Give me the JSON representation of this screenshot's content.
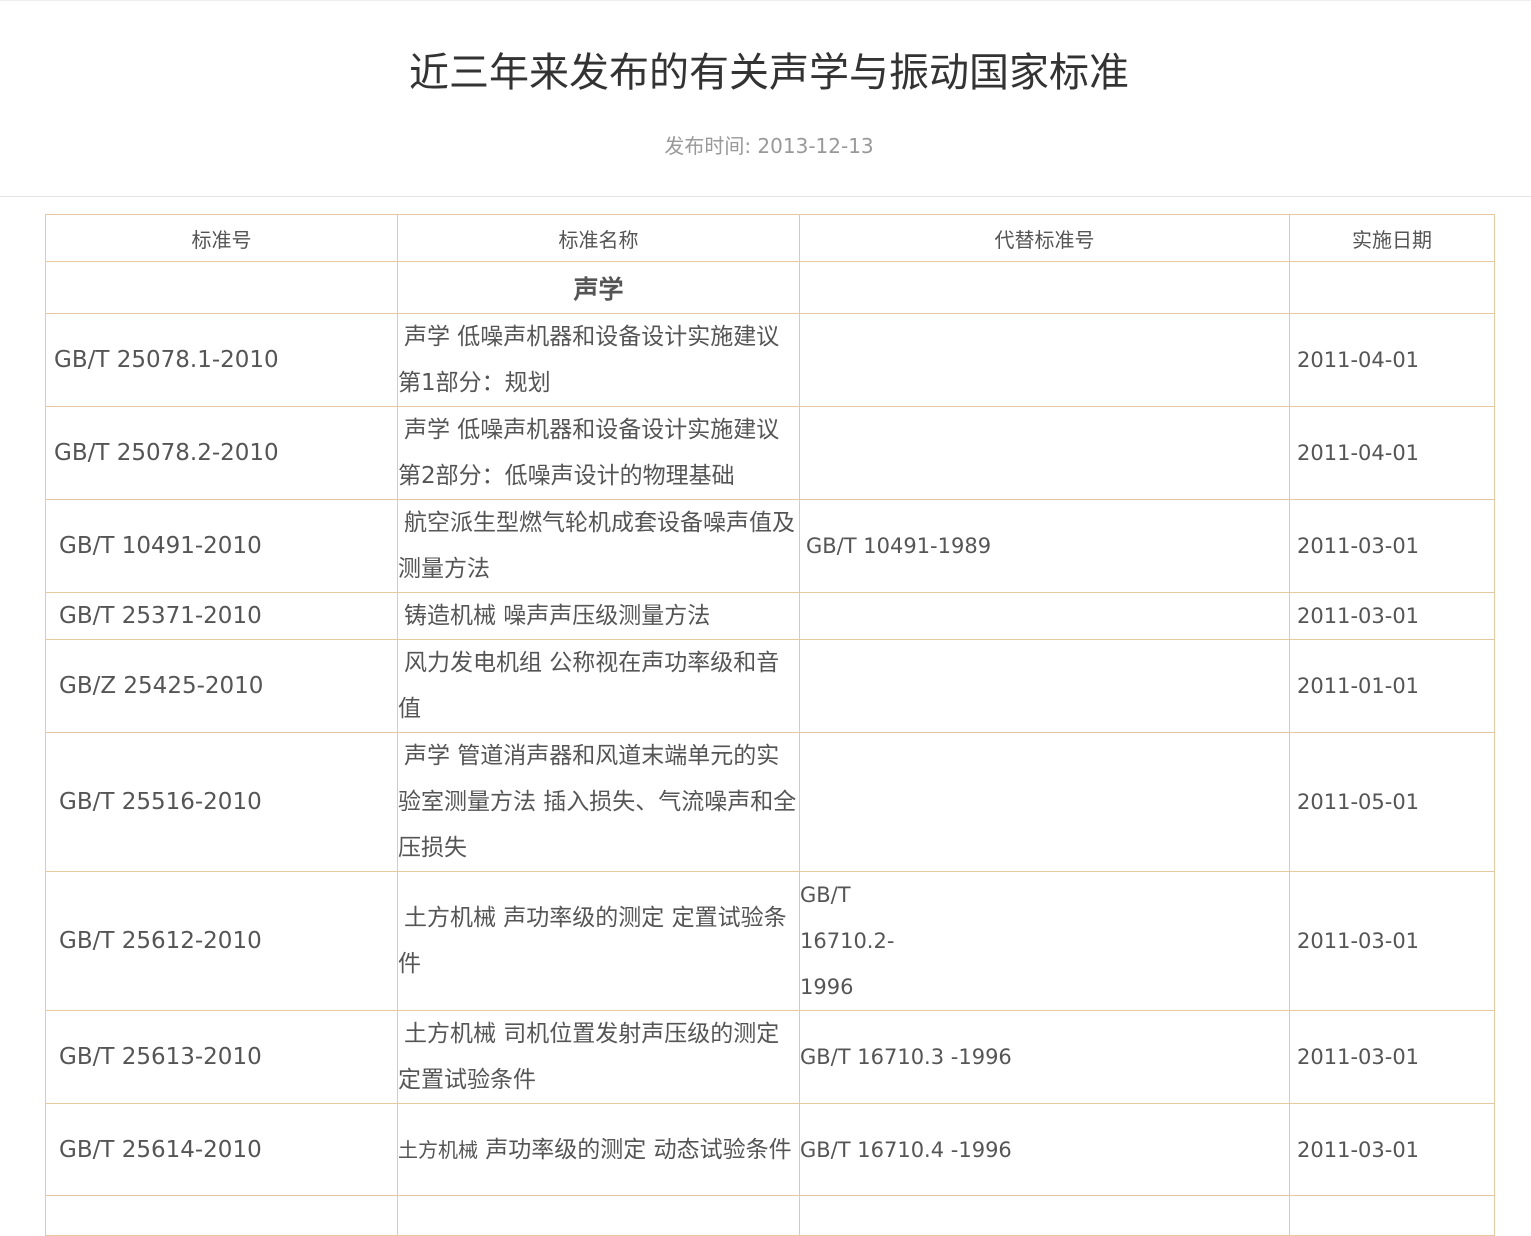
{
  "article": {
    "title": "近三年来发布的有关声学与振动国家标准",
    "publish_label": "发布时间: 2013-12-13"
  },
  "table": {
    "headers": [
      "标准号",
      "标准名称",
      "代替标准号",
      "实施日期"
    ],
    "category": "声学",
    "rows": [
      {
        "code": "GB/T 25078.1-2010",
        "name": "声学 低噪声机器和设备设计实施建议 第1部分：规划",
        "replaces": "",
        "date": "2011-04-01"
      },
      {
        "code": "GB/T 25078.2-2010",
        "name": "声学 低噪声机器和设备设计实施建议 第2部分：低噪声设计的物理基础",
        "replaces": "",
        "date": "2011-04-01"
      },
      {
        "code": "GB/T 10491-2010",
        "name": "航空派生型燃气轮机成套设备噪声值及测量方法",
        "replaces": "GB/T 10491-1989",
        "date": "2011-03-01"
      },
      {
        "code": "GB/T 25371-2010",
        "name": "铸造机械 噪声声压级测量方法",
        "replaces": "",
        "date": "2011-03-01"
      },
      {
        "code": "GB/Z 25425-2010",
        "name": "风力发电机组 公称视在声功率级和音值",
        "replaces": "",
        "date": "2011-01-01"
      },
      {
        "code": "GB/T 25516-2010",
        "name": "声学 管道消声器和风道末端单元的实验室测量方法 插入损失、气流噪声和全压损失",
        "replaces": "",
        "date": "2011-05-01"
      },
      {
        "code": "GB/T 25612-2010",
        "name": "土方机械 声功率级的测定 定置试验条件",
        "replaces": "GB/T 16710.2-1996",
        "date": "2011-03-01"
      },
      {
        "code": "GB/T 25613-2010",
        "name": "土方机械 司机位置发射声压级的测定 定置试验条件",
        "replaces": "GB/T 16710.3 -1996",
        "date": "2011-03-01"
      },
      {
        "code": "GB/T 25614-2010",
        "name_prefix": "土方机械",
        "name": " 声功率级的测定 动态试验条件",
        "replaces": "GB/T 16710.4 -1996",
        "date": "2011-03-01"
      }
    ]
  },
  "colors": {
    "border": "#e6c9a0",
    "text": "#555555",
    "meta": "#999999"
  }
}
